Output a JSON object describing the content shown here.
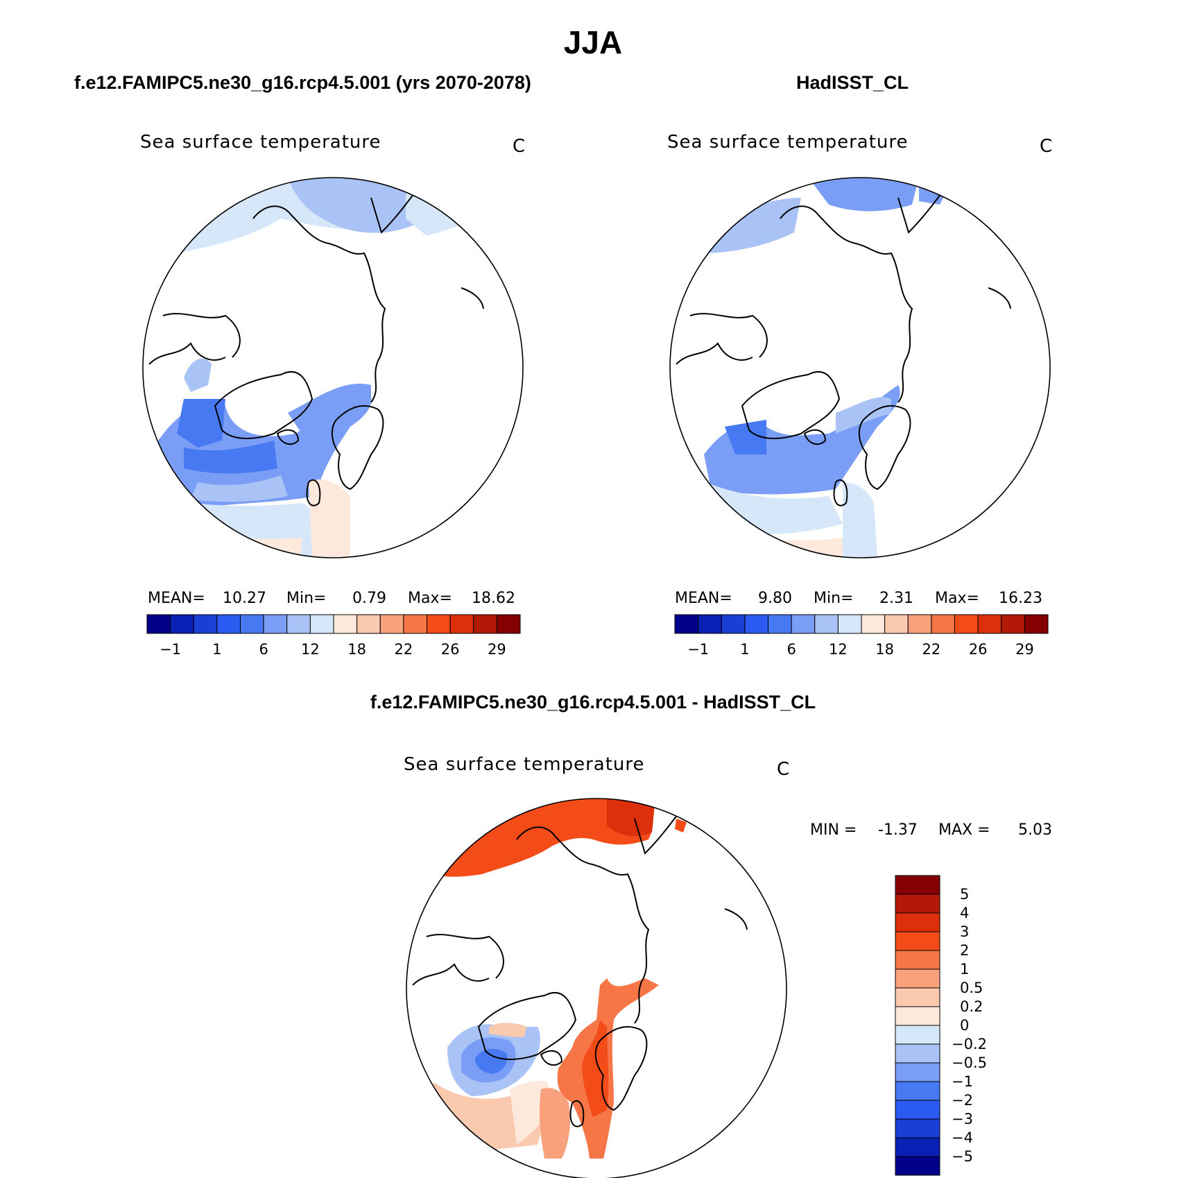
{
  "figure": {
    "season": "JJA",
    "panels": [
      {
        "title": "f.e12.FAMIPC5.ne30_g16.rcp4.5.001 (yrs 2070-2078)",
        "variable": "Sea surface temperature",
        "units": "C",
        "stats": {
          "mean_label": "MEAN=",
          "mean": "10.27",
          "min_label": "Min=",
          "min": "0.79",
          "max_label": "Max=",
          "max": "18.62"
        }
      },
      {
        "title": "HadISST_CL",
        "variable": "Sea surface temperature",
        "units": "C",
        "stats": {
          "mean_label": "MEAN=",
          "mean": "9.80",
          "min_label": "Min=",
          "min": "2.31",
          "max_label": "Max=",
          "max": "16.23"
        }
      }
    ],
    "diff_panel": {
      "title": "f.e12.FAMIPC5.ne30_g16.rcp4.5.001 - HadISST_CL",
      "variable": "Sea surface temperature",
      "units": "C",
      "stats": {
        "min_label": "MIN =",
        "min": "-1.37",
        "max_label": "MAX =",
        "max": "5.03"
      }
    },
    "sst_colorbar": {
      "colors": [
        "#00008b",
        "#0a1fb4",
        "#1a3fd6",
        "#2a5af0",
        "#4779f2",
        "#7a9ef5",
        "#a9c3f7",
        "#d6e7f9",
        "#fde9dc",
        "#fbc9ae",
        "#f9a07c",
        "#f77647",
        "#f34c18",
        "#dc300d",
        "#b31907",
        "#850000"
      ],
      "tick_labels": [
        "−1",
        "1",
        "6",
        "12",
        "18",
        "22",
        "26",
        "29"
      ]
    },
    "diff_colorbar": {
      "colors_bottom_to_top": [
        "#00008b",
        "#0a1fb4",
        "#1a3fd6",
        "#2a5af0",
        "#4779f2",
        "#7a9ef5",
        "#a9c3f7",
        "#d6e7f9",
        "#fde9dc",
        "#fbc9ae",
        "#f9a07c",
        "#f77647",
        "#f34c18",
        "#dc300d",
        "#b31907",
        "#850000"
      ],
      "tick_labels_top_to_bottom": [
        "5",
        "4",
        "3",
        "2",
        "1",
        "0.5",
        "0.2",
        "0",
        "−0.2",
        "−0.5",
        "−1",
        "−2",
        "−3",
        "−4",
        "−5"
      ]
    }
  }
}
